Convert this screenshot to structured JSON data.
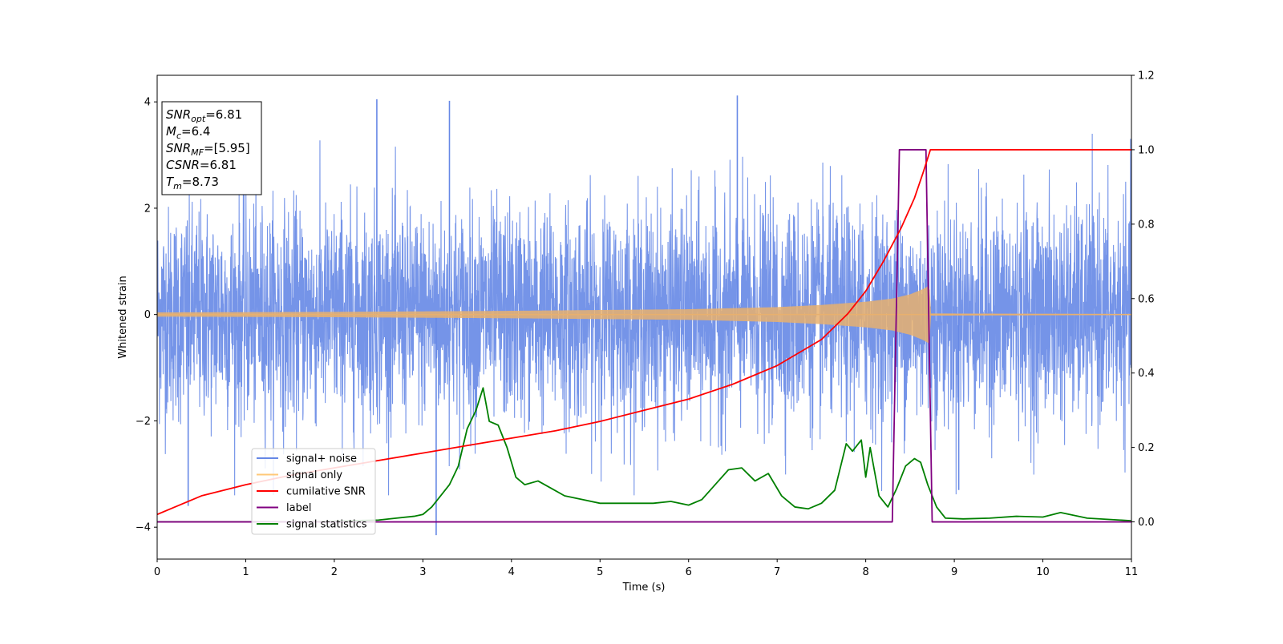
{
  "chart_data": {
    "type": "line",
    "xlabel": "Time (s)",
    "ylabel": "Whitened strain",
    "xlim": [
      0,
      11
    ],
    "ylim_left": [
      -4.6,
      4.5
    ],
    "ylim_right": [
      -0.1,
      1.2
    ],
    "x_ticks": [
      "0",
      "1",
      "2",
      "3",
      "4",
      "5",
      "6",
      "7",
      "8",
      "9",
      "10",
      "11"
    ],
    "y_ticks_left": [
      "4",
      "2",
      "0",
      "−2",
      "−4"
    ],
    "y_ticks_right": [
      "1.2",
      "1.0",
      "0.8",
      "0.6",
      "0.4",
      "0.2",
      "0.0"
    ],
    "annotation": [
      {
        "base": "SNR",
        "sub": "opt",
        "value": "=6.81"
      },
      {
        "base": "M",
        "sub": "c",
        "value": "=6.4"
      },
      {
        "base": "SNR",
        "sub": "MF",
        "value": "=[5.95]"
      },
      {
        "base": "CSNR",
        "sub": "",
        "value": "=6.81"
      },
      {
        "base": "T",
        "sub": "m",
        "value": "=8.73"
      }
    ],
    "legend": {
      "placement": "lower-left",
      "entries": [
        "signal+ noise",
        "signal only",
        "cumilative SNR",
        "label",
        "signal statistics"
      ]
    },
    "series": [
      {
        "name": "signal+ noise",
        "axis": "left",
        "color": "#6688e6",
        "description_values": {
          "noise_sigma": 1.0,
          "duration": 11,
          "peaks": [
            [
              2.48,
              4.05
            ],
            [
              3.3,
              4.02
            ],
            [
              6.55,
              4.12
            ],
            [
              3.15,
              -4.15
            ],
            [
              0.35,
              -3.6
            ],
            [
              9.05,
              -3.3
            ]
          ]
        }
      },
      {
        "name": "signal only",
        "axis": "left",
        "color": "#e8b06e",
        "envelope": [
          [
            0,
            0.04
          ],
          [
            2,
            0.05
          ],
          [
            4,
            0.07
          ],
          [
            6,
            0.1
          ],
          [
            7,
            0.14
          ],
          [
            7.5,
            0.18
          ],
          [
            8,
            0.24
          ],
          [
            8.3,
            0.3
          ],
          [
            8.5,
            0.38
          ],
          [
            8.65,
            0.48
          ],
          [
            8.72,
            0.55
          ],
          [
            8.73,
            0.02
          ],
          [
            11,
            0.01
          ]
        ]
      },
      {
        "name": "cumilative SNR",
        "axis": "right",
        "color": "#ff0000",
        "x": [
          0,
          0.5,
          1,
          1.5,
          2,
          2.5,
          3,
          3.5,
          4,
          4.5,
          5,
          5.5,
          6,
          6.5,
          7,
          7.5,
          7.8,
          8.0,
          8.2,
          8.4,
          8.55,
          8.65,
          8.73,
          9,
          10,
          11
        ],
        "y": [
          0.02,
          0.07,
          0.1,
          0.125,
          0.145,
          0.165,
          0.185,
          0.205,
          0.225,
          0.245,
          0.27,
          0.3,
          0.33,
          0.37,
          0.42,
          0.49,
          0.56,
          0.62,
          0.7,
          0.79,
          0.87,
          0.94,
          1.0,
          1.0,
          1.0,
          1.0
        ]
      },
      {
        "name": "label",
        "axis": "right",
        "color": "#800080",
        "x": [
          0,
          8.3,
          8.38,
          8.68,
          8.75,
          11
        ],
        "y": [
          0,
          0,
          1,
          1,
          0,
          0
        ]
      },
      {
        "name": "signal statistics",
        "axis": "right",
        "color": "#008000",
        "x": [
          0,
          0.5,
          1,
          1.5,
          2,
          2.5,
          2.7,
          2.9,
          3.0,
          3.1,
          3.2,
          3.3,
          3.4,
          3.5,
          3.6,
          3.68,
          3.75,
          3.85,
          3.95,
          4.05,
          4.15,
          4.3,
          4.45,
          4.6,
          4.8,
          5.0,
          5.2,
          5.4,
          5.6,
          5.8,
          6.0,
          6.15,
          6.3,
          6.45,
          6.6,
          6.75,
          6.9,
          7.05,
          7.2,
          7.35,
          7.5,
          7.65,
          7.78,
          7.85,
          7.95,
          8.0,
          8.05,
          8.15,
          8.25,
          8.35,
          8.45,
          8.55,
          8.62,
          8.7,
          8.8,
          8.9,
          9.1,
          9.4,
          9.7,
          10.0,
          10.2,
          10.5,
          11
        ],
        "y": [
          0.0,
          0.0,
          0.0,
          0.0,
          0.002,
          0.005,
          0.01,
          0.015,
          0.02,
          0.04,
          0.07,
          0.1,
          0.15,
          0.25,
          0.3,
          0.36,
          0.27,
          0.26,
          0.2,
          0.12,
          0.1,
          0.11,
          0.09,
          0.07,
          0.06,
          0.05,
          0.05,
          0.05,
          0.05,
          0.055,
          0.045,
          0.06,
          0.1,
          0.14,
          0.145,
          0.11,
          0.13,
          0.07,
          0.04,
          0.035,
          0.05,
          0.085,
          0.21,
          0.19,
          0.22,
          0.12,
          0.2,
          0.07,
          0.04,
          0.09,
          0.15,
          0.17,
          0.16,
          0.1,
          0.04,
          0.01,
          0.008,
          0.01,
          0.015,
          0.013,
          0.025,
          0.01,
          0.003
        ]
      }
    ]
  }
}
